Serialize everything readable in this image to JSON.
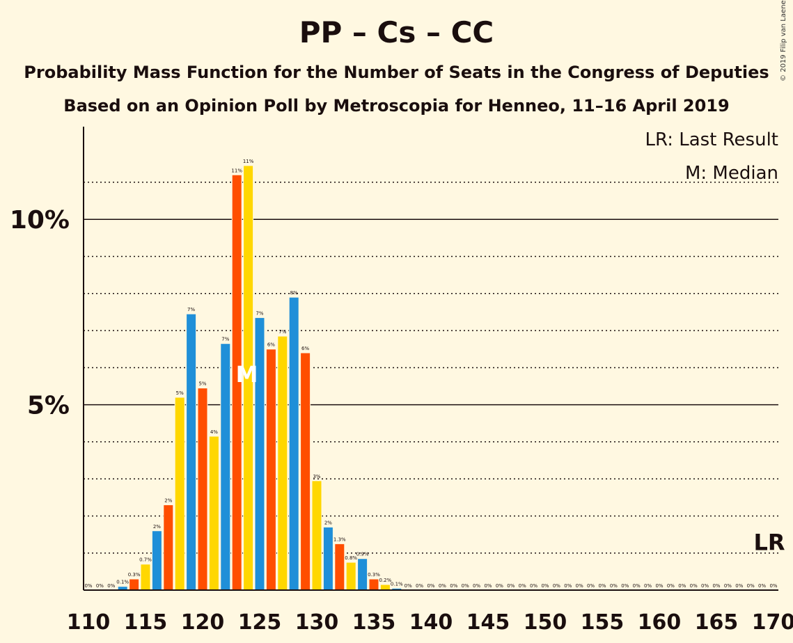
{
  "title": "PP – Cs – CC",
  "subtitle1": "Probability Mass Function for the Number of Seats in the Congress of Deputies",
  "subtitle2": "Based on an Opinion Poll by Metroscopia for Henneo, 11–16 April 2019",
  "copyright": "© 2019 Filip van Laenen",
  "legend": {
    "last_result": "LR: Last Result",
    "median": "M: Median"
  },
  "markers": {
    "median_letter": "M",
    "median_seat": 124,
    "last_result_letter": "LR",
    "last_result_seat": 170
  },
  "colors": {
    "blue": "#1F8FD8",
    "red": "#FF4E00",
    "yellow": "#FFD700",
    "background": "#FFF8E1"
  },
  "chart_data": {
    "type": "bar",
    "xlabel": "",
    "ylabel": "",
    "xlim": [
      110,
      170
    ],
    "ylim": [
      0,
      12.5
    ],
    "y_major_ticks": [
      {
        "value": 5,
        "label": "5%"
      },
      {
        "value": 10,
        "label": "10%"
      }
    ],
    "y_minor_gridlines": [
      1,
      2,
      3,
      4,
      6,
      7,
      8,
      9,
      11
    ],
    "x_tick_labels": [
      "110",
      "115",
      "120",
      "125",
      "130",
      "135",
      "140",
      "145",
      "150",
      "155",
      "160",
      "165",
      "170"
    ],
    "bars": [
      {
        "seat": 110,
        "value": 0.0,
        "label": "0%"
      },
      {
        "seat": 111,
        "value": 0.0,
        "label": "0%"
      },
      {
        "seat": 112,
        "value": 0.0,
        "label": "0%"
      },
      {
        "seat": 113,
        "value": 0.1,
        "label": "0.1%"
      },
      {
        "seat": 114,
        "value": 0.3,
        "label": "0.3%"
      },
      {
        "seat": 115,
        "value": 0.7,
        "label": "0.7%"
      },
      {
        "seat": 116,
        "value": 1.6,
        "label": "2%"
      },
      {
        "seat": 117,
        "value": 2.3,
        "label": "2%"
      },
      {
        "seat": 118,
        "value": 5.2,
        "label": "5%"
      },
      {
        "seat": 119,
        "value": 7.45,
        "label": "7%"
      },
      {
        "seat": 120,
        "value": 5.45,
        "label": "5%"
      },
      {
        "seat": 121,
        "value": 4.15,
        "label": "4%"
      },
      {
        "seat": 122,
        "value": 6.65,
        "label": "7%"
      },
      {
        "seat": 123,
        "value": 11.2,
        "label": "11%"
      },
      {
        "seat": 124,
        "value": 11.45,
        "label": "11%"
      },
      {
        "seat": 125,
        "value": 7.35,
        "label": "7%"
      },
      {
        "seat": 126,
        "value": 6.5,
        "label": "6%"
      },
      {
        "seat": 127,
        "value": 6.85,
        "label": "7%"
      },
      {
        "seat": 128,
        "value": 7.9,
        "label": "8%"
      },
      {
        "seat": 129,
        "value": 6.4,
        "label": "6%"
      },
      {
        "seat": 130,
        "value": 2.95,
        "label": "3%"
      },
      {
        "seat": 131,
        "value": 1.7,
        "label": "2%"
      },
      {
        "seat": 132,
        "value": 1.25,
        "label": "1.3%"
      },
      {
        "seat": 133,
        "value": 0.75,
        "label": "0.8%"
      },
      {
        "seat": 134,
        "value": 0.85,
        "label": "0.9%"
      },
      {
        "seat": 135,
        "value": 0.3,
        "label": "0.3%"
      },
      {
        "seat": 136,
        "value": 0.15,
        "label": "0.2%"
      },
      {
        "seat": 137,
        "value": 0.05,
        "label": "0.1%"
      },
      {
        "seat": 138,
        "value": 0.0,
        "label": "0%"
      },
      {
        "seat": 139,
        "value": 0.0,
        "label": "0%"
      },
      {
        "seat": 140,
        "value": 0.0,
        "label": "0%"
      },
      {
        "seat": 141,
        "value": 0.0,
        "label": "0%"
      },
      {
        "seat": 142,
        "value": 0.0,
        "label": "0%"
      },
      {
        "seat": 143,
        "value": 0.0,
        "label": "0%"
      },
      {
        "seat": 144,
        "value": 0.0,
        "label": "0%"
      },
      {
        "seat": 145,
        "value": 0.0,
        "label": "0%"
      },
      {
        "seat": 146,
        "value": 0.0,
        "label": "0%"
      },
      {
        "seat": 147,
        "value": 0.0,
        "label": "0%"
      },
      {
        "seat": 148,
        "value": 0.0,
        "label": "0%"
      },
      {
        "seat": 149,
        "value": 0.0,
        "label": "0%"
      },
      {
        "seat": 150,
        "value": 0.0,
        "label": "0%"
      },
      {
        "seat": 151,
        "value": 0.0,
        "label": "0%"
      },
      {
        "seat": 152,
        "value": 0.0,
        "label": "0%"
      },
      {
        "seat": 153,
        "value": 0.0,
        "label": "0%"
      },
      {
        "seat": 154,
        "value": 0.0,
        "label": "0%"
      },
      {
        "seat": 155,
        "value": 0.0,
        "label": "0%"
      },
      {
        "seat": 156,
        "value": 0.0,
        "label": "0%"
      },
      {
        "seat": 157,
        "value": 0.0,
        "label": "0%"
      },
      {
        "seat": 158,
        "value": 0.0,
        "label": "0%"
      },
      {
        "seat": 159,
        "value": 0.0,
        "label": "0%"
      },
      {
        "seat": 160,
        "value": 0.0,
        "label": "0%"
      },
      {
        "seat": 161,
        "value": 0.0,
        "label": "0%"
      },
      {
        "seat": 162,
        "value": 0.0,
        "label": "0%"
      },
      {
        "seat": 163,
        "value": 0.0,
        "label": "0%"
      },
      {
        "seat": 164,
        "value": 0.0,
        "label": "0%"
      },
      {
        "seat": 165,
        "value": 0.0,
        "label": "0%"
      },
      {
        "seat": 166,
        "value": 0.0,
        "label": "0%"
      },
      {
        "seat": 167,
        "value": 0.0,
        "label": "0%"
      },
      {
        "seat": 168,
        "value": 0.0,
        "label": "0%"
      },
      {
        "seat": 169,
        "value": 0.0,
        "label": "0%"
      },
      {
        "seat": 170,
        "value": 0.0,
        "label": "0%"
      }
    ]
  }
}
